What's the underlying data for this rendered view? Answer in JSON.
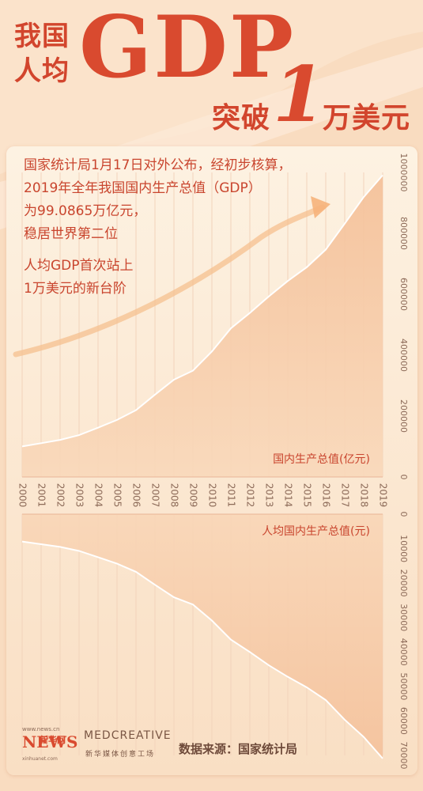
{
  "title": {
    "line1": "我国",
    "line2": "人均",
    "gdp": "GDP",
    "line3a": "突破",
    "one": "1",
    "line3b": "万美元"
  },
  "intro_text": {
    "line1": "国家统计局1月17日对外公布，经初步核算，",
    "line2": "2019年全年我国国内生产总值（GDP）",
    "line3": "为99.0865万亿元，",
    "line4": "稳居世界第二位"
  },
  "highlight_text": {
    "line1": "人均GDP首次站上",
    "line2": "1万美元的新台阶"
  },
  "footer": {
    "source": "数据来源：国家统计局",
    "logo1_small": "www.news.cn",
    "logo1_main": "NEWS",
    "logo1_cn": "新华网",
    "logo1_sub": "xinhuanet.com",
    "logo2_main": "MEDCREATIVE",
    "logo2_cn": "新华媒体创意工场"
  },
  "colors": {
    "accent": "#d94a2f",
    "area_top": "#f6c9a4",
    "area_bottom": "#f7cdaa",
    "line": "#ffffff",
    "text": "#c9452e"
  },
  "chart_data": [
    {
      "type": "area",
      "ylabel": "国内生产总值(亿元)",
      "x": [
        "2000",
        "2001",
        "2002",
        "2003",
        "2004",
        "2005",
        "2006",
        "2007",
        "2008",
        "2009",
        "2010",
        "2011",
        "2012",
        "2013",
        "2014",
        "2015",
        "2016",
        "2017",
        "2018",
        "2019"
      ],
      "y_ticks": [
        "0",
        "200000",
        "400000",
        "600000",
        "800000",
        "1000000"
      ],
      "ylim": [
        0,
        1000000
      ],
      "series": [
        {
          "values": [
            100280,
            110863,
            121717,
            137422,
            161840,
            187319,
            219438,
            270232,
            319516,
            349081,
            412119,
            487940,
            538580,
            592963,
            643563,
            688858,
            746395,
            832036,
            919281,
            990865
          ]
        }
      ],
      "grid": true
    },
    {
      "type": "area",
      "ylabel": "人均国内生产总值(元)",
      "x": [
        "2000",
        "2001",
        "2002",
        "2003",
        "2004",
        "2005",
        "2006",
        "2007",
        "2008",
        "2009",
        "2010",
        "2011",
        "2012",
        "2013",
        "2014",
        "2015",
        "2016",
        "2017",
        "2018",
        "2019"
      ],
      "y_ticks": [
        "0",
        "10000",
        "20000",
        "30000",
        "40000",
        "50000",
        "60000",
        "70000"
      ],
      "ylim": [
        0,
        70000
      ],
      "inverted": true,
      "series": [
        {
          "values": [
            7942,
            8717,
            9506,
            10666,
            12487,
            14368,
            16738,
            20505,
            24121,
            26222,
            30876,
            36403,
            40007,
            43852,
            47203,
            50251,
            53935,
            59660,
            64644,
            70892
          ]
        }
      ],
      "grid": true
    }
  ]
}
